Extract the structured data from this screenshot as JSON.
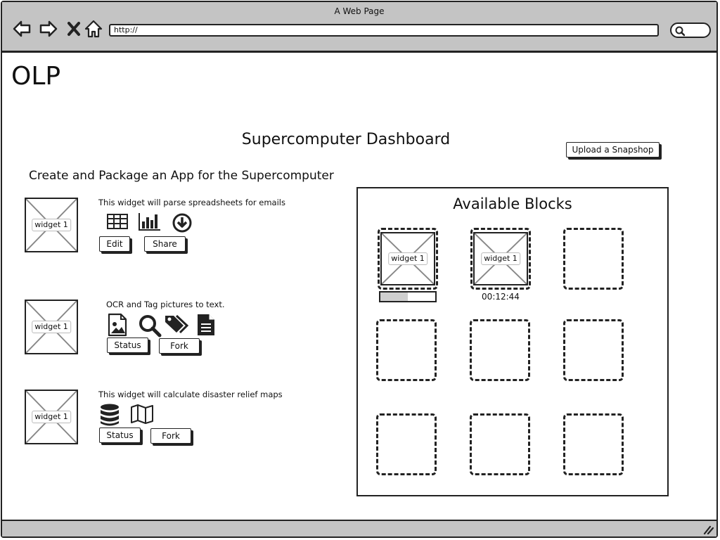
{
  "window": {
    "title": "A Web Page",
    "url": "http://"
  },
  "logo": "OLP",
  "dashboard_title": "Supercomputer Dashboard",
  "upload_button": "Upload a Snapshop",
  "section_title": "Create and Package an App for the Supercomputer",
  "widgets": [
    {
      "placeholder": "widget 1",
      "description": "This widget will parse spreadsheets for emails",
      "icons": [
        "table-icon",
        "bar-chart-icon",
        "download-icon"
      ],
      "buttons": [
        "Edit",
        "Share"
      ]
    },
    {
      "placeholder": "widget 1",
      "description": "OCR and Tag pictures to text.",
      "icons": [
        "image-file-icon",
        "search-icon",
        "tags-icon",
        "document-icon"
      ],
      "buttons": [
        "Status",
        "Fork"
      ]
    },
    {
      "placeholder": "widget 1",
      "description": "This widget will calculate disaster relief maps",
      "icons": [
        "database-icon",
        "map-icon"
      ],
      "buttons": [
        "Status",
        "Fork"
      ]
    }
  ],
  "available_blocks": {
    "title": "Available Blocks",
    "filled": [
      {
        "label": "widget 1",
        "progress": 0.5
      },
      {
        "label": "widget 1",
        "timer": "00:12:44"
      }
    ],
    "empty_slots": 7
  }
}
